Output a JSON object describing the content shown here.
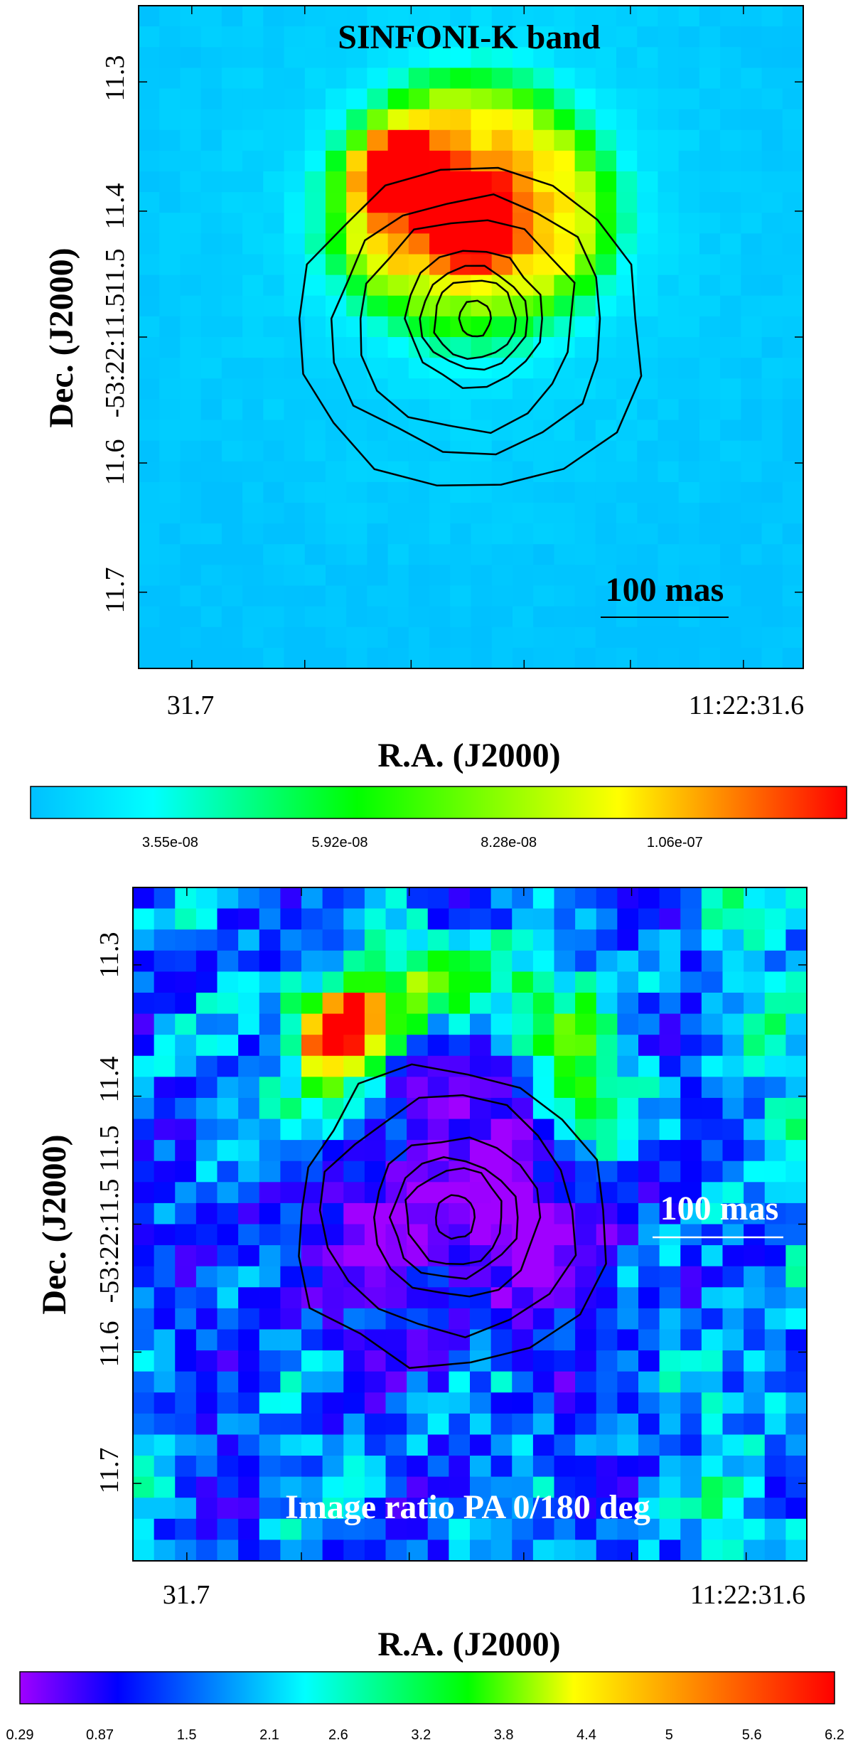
{
  "chart_data": [
    {
      "type": "heatmap",
      "title": "SINFONI-K band",
      "xlabel": "R.A. (J2000)",
      "ylabel": "Dec. (J2000)",
      "x_ticks": [
        "31.7",
        "11:22:31.6"
      ],
      "y_ticks": [
        "11.3",
        "11.4",
        "11.5",
        "-53:22:11.5",
        "11.6",
        "11.7"
      ],
      "y_tick_values": [
        11.3,
        11.4,
        11.5,
        11.55,
        11.6,
        11.7
      ],
      "scale_bar": "100 mas",
      "colormap": [
        "#00c0ff",
        "#00ffff",
        "#00ff00",
        "#ffff00",
        "#ff0000"
      ],
      "colorbar_ticks": [
        "3.55e-08",
        "5.92e-08",
        "8.28e-08",
        "1.06e-07"
      ],
      "colorbar_tick_values": [
        3.55e-08,
        5.92e-08,
        8.28e-08,
        1.06e-07
      ],
      "colorbar_range": [
        1.6e-08,
        1.3e-07
      ],
      "contour_levels": 7
    },
    {
      "type": "heatmap",
      "title": "Image ratio PA 0/180 deg",
      "xlabel": "R.A. (J2000)",
      "ylabel": "Dec. (J2000)",
      "x_ticks": [
        "31.7",
        "11:22:31.6"
      ],
      "y_ticks": [
        "11.3",
        "11.4",
        "11.5",
        "-53:22:11.5",
        "11.6",
        "11.7"
      ],
      "y_tick_values": [
        11.3,
        11.4,
        11.5,
        11.55,
        11.6,
        11.7
      ],
      "scale_bar": "100 mas",
      "colormap": [
        "#a000ff",
        "#0000ff",
        "#00ffff",
        "#00ff00",
        "#ffff00",
        "#ff0000"
      ],
      "colorbar_ticks": [
        "0.29",
        "0.87",
        "1.5",
        "2.1",
        "2.6",
        "3.2",
        "3.8",
        "4.4",
        "5",
        "5.6",
        "6.2"
      ],
      "colorbar_tick_values": [
        0.29,
        0.87,
        1.5,
        2.1,
        2.6,
        3.2,
        3.8,
        4.4,
        5,
        5.6,
        6.2
      ],
      "colorbar_range": [
        0.29,
        6.2
      ],
      "contour_levels": 6
    }
  ]
}
